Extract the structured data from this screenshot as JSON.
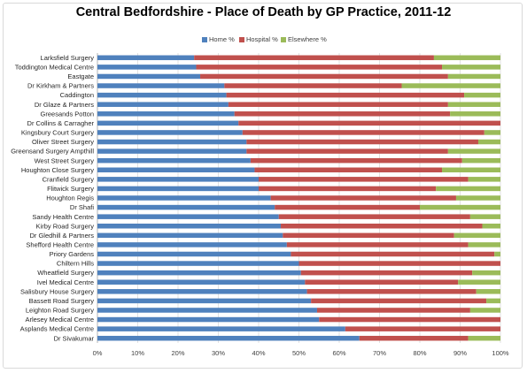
{
  "chart_data": {
    "type": "bar",
    "orientation": "horizontal",
    "stacked": true,
    "title": "Central Bedfordshire - Place of Death by GP Practice, 2011-12",
    "xlabel": "",
    "ylabel": "",
    "xlim": [
      0,
      100
    ],
    "x_ticks": [
      "0%",
      "10%",
      "20%",
      "30%",
      "40%",
      "50%",
      "60%",
      "70%",
      "80%",
      "90%",
      "100%"
    ],
    "grid": true,
    "legend_position": "top",
    "categories": [
      "Larksfield Surgery",
      "Toddington Medical Centre",
      "Eastgate",
      "Dr Kirkham & Partners",
      "Caddington",
      "Dr Glaze & Partners",
      "Greesands Potton",
      "Dr Collins & Carragher",
      "Kingsbury Court Surgery",
      "Oliver Street Surgery",
      "Greensand Surgery Ampthill",
      "West Street Surgery",
      "Houghton Close Surgery",
      "Cranfield Surgery",
      "Flitwick Surgery",
      "Houghton Regis",
      "Dr Shafi",
      "Sandy Health Centre",
      "Kirby Road Surgery",
      "Dr Gledhill & Partners",
      "Shefford Health Centre",
      "Priory Gardens",
      "Chiltern Hills",
      "Wheatfield Surgery",
      "Ivel Medical Centre",
      "Salisbury House Surgery",
      "Bassett Road Surgery",
      "Leighton Road Surgery",
      "Arlesey Medical Centre",
      "Asplands Medical Centre",
      "Dr Sivakumar"
    ],
    "series": [
      {
        "name": "Home %",
        "color": "#4f81bd",
        "values": [
          24,
          24.5,
          25.5,
          31.5,
          32,
          32.5,
          34,
          35,
          36,
          37,
          37,
          38,
          39,
          40,
          40,
          43,
          44,
          45,
          45.5,
          46,
          47,
          48,
          50,
          50.5,
          51.5,
          52,
          53,
          54.5,
          55,
          61.5,
          65
        ]
      },
      {
        "name": "Hospital %",
        "color": "#c0504d",
        "values": [
          59.5,
          61,
          61.5,
          44,
          59,
          54.5,
          53.5,
          65,
          60,
          57.5,
          50,
          52.5,
          46.5,
          52,
          44,
          46,
          36,
          47.5,
          50,
          42.5,
          45,
          50.5,
          50,
          42.5,
          38,
          42,
          43.5,
          38,
          45,
          38.5,
          27
        ]
      },
      {
        "name": "Elsewhere %",
        "color": "#9bbb59",
        "values": [
          16.5,
          14.5,
          13,
          24.5,
          9,
          13,
          12.5,
          0,
          4,
          5.5,
          13,
          9.5,
          14.5,
          8,
          16,
          11,
          20,
          7.5,
          4.5,
          11.5,
          8,
          1.5,
          0,
          7,
          10.5,
          6,
          3.5,
          7.5,
          0,
          0,
          8
        ]
      }
    ]
  }
}
